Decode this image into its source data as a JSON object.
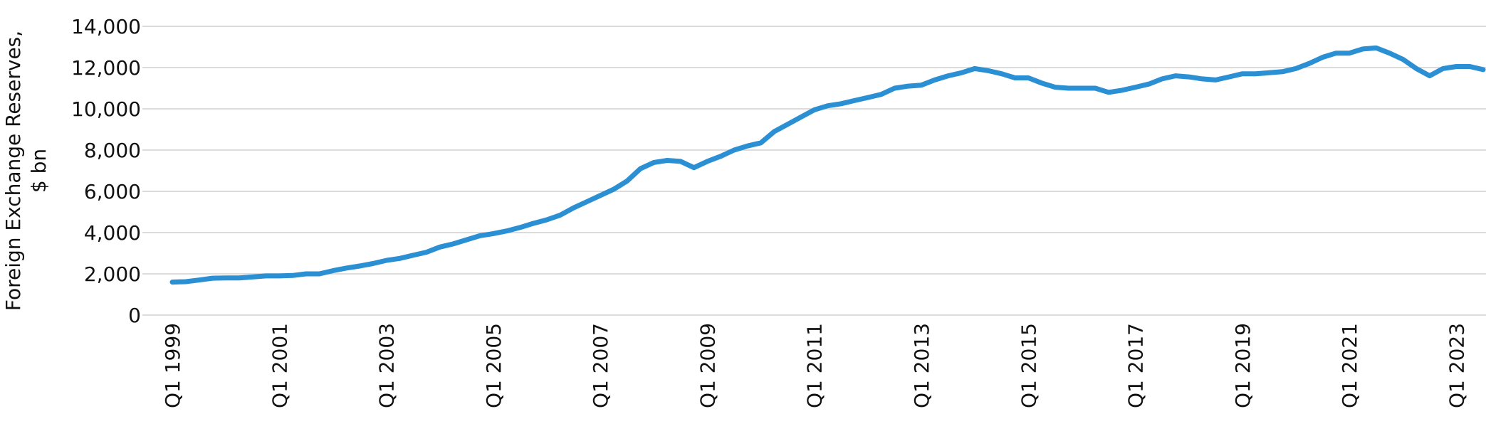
{
  "chart_data": {
    "type": "line",
    "ylabel": [
      "Foreign Exchange Reserves,",
      "$ bn"
    ],
    "categories": [
      "Q1 1999",
      null,
      null,
      null,
      null,
      null,
      null,
      null,
      "Q1 2001",
      null,
      null,
      null,
      null,
      null,
      null,
      null,
      "Q1 2003",
      null,
      null,
      null,
      null,
      null,
      null,
      null,
      "Q1 2005",
      null,
      null,
      null,
      null,
      null,
      null,
      null,
      "Q1 2007",
      null,
      null,
      null,
      null,
      null,
      null,
      null,
      "Q1 2009",
      null,
      null,
      null,
      null,
      null,
      null,
      null,
      "Q1 2011",
      null,
      null,
      null,
      null,
      null,
      null,
      null,
      "Q1 2013",
      null,
      null,
      null,
      null,
      null,
      null,
      null,
      "Q1 2015",
      null,
      null,
      null,
      null,
      null,
      null,
      null,
      "Q1 2017",
      null,
      null,
      null,
      null,
      null,
      null,
      null,
      "Q1 2019",
      null,
      null,
      null,
      null,
      null,
      null,
      null,
      "Q1 2021",
      null,
      null,
      null,
      null,
      null,
      null,
      null,
      "Q1 2023",
      null,
      null
    ],
    "series": [
      {
        "color": "#2b8fd3",
        "values": [
          1600,
          1620,
          1700,
          1790,
          1800,
          1800,
          1850,
          1900,
          1900,
          1920,
          2000,
          2000,
          2150,
          2280,
          2380,
          2500,
          2650,
          2750,
          2900,
          3050,
          3300,
          3450,
          3650,
          3850,
          3950,
          4080,
          4250,
          4450,
          4620,
          4850,
          5200,
          5500,
          5800,
          6100,
          6500,
          7100,
          7400,
          7500,
          7450,
          7150,
          7450,
          7700,
          8000,
          8200,
          8350,
          8900,
          9250,
          9600,
          9950,
          10150,
          10250,
          10400,
          10550,
          10700,
          11000,
          11100,
          11150,
          11400,
          11600,
          11750,
          11950,
          11850,
          11700,
          11500,
          11500,
          11250,
          11050,
          11000,
          11000,
          11000,
          10800,
          10900,
          11050,
          11200,
          11450,
          11600,
          11550,
          11450,
          11400,
          11550,
          11700,
          11700,
          11750,
          11800,
          11950,
          12200,
          12500,
          12700,
          12700,
          12900,
          12950,
          12700,
          12400,
          11950,
          11600,
          11950,
          12050,
          12050,
          11900
        ]
      }
    ],
    "ylim": [
      0,
      14000
    ],
    "yticks": [
      0,
      {
        "value": 2000,
        "label": "2,000"
      },
      {
        "value": 4000,
        "label": "4,000"
      },
      {
        "value": 6000,
        "label": "6,000"
      },
      {
        "value": 8000,
        "label": "8,000"
      },
      {
        "value": 10000,
        "label": "10,000"
      },
      {
        "value": 12000,
        "label": "12,000"
      },
      {
        "value": 14000,
        "label": "14,000"
      }
    ],
    "grid": true
  }
}
